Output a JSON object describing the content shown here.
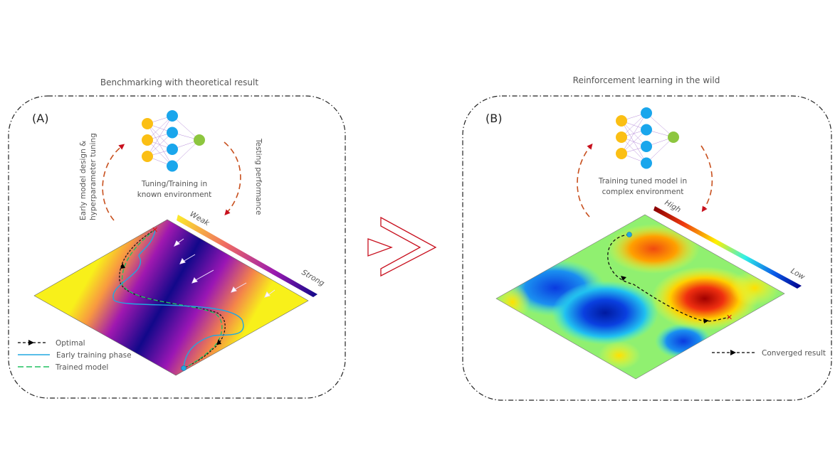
{
  "panel_a": {
    "title": "Benchmarking with theoretical result",
    "label": "(A)",
    "left_arrow_text": [
      "Early model design &",
      "hyperparameter tuning"
    ],
    "right_arrow_text": "Testing performance",
    "center_text": [
      "Tuning/Training in",
      "known environment"
    ],
    "colorbar": {
      "top": "Weak",
      "bottom": "Strong"
    },
    "legend": [
      {
        "label": "Optimal",
        "style": "black-dashed-arrow"
      },
      {
        "label": "Early training phase",
        "style": "blue-solid"
      },
      {
        "label": "Trained model",
        "style": "green-dashed"
      }
    ]
  },
  "panel_b": {
    "title": "Reinforcement learning in the wild",
    "label": "(B)",
    "center_text": [
      "Training tuned model in",
      "complex environment"
    ],
    "colorbar": {
      "top": "High",
      "bottom": "Low"
    },
    "legend": [
      {
        "label": "Converged result",
        "style": "black-dashed-arrow"
      }
    ]
  },
  "colors": {
    "accent_red": "#c8101e",
    "node_yellow": "#fbbf14",
    "node_blue": "#1aa6ec",
    "node_green": "#8dc63f",
    "arrow_orange": "#c8501e"
  }
}
